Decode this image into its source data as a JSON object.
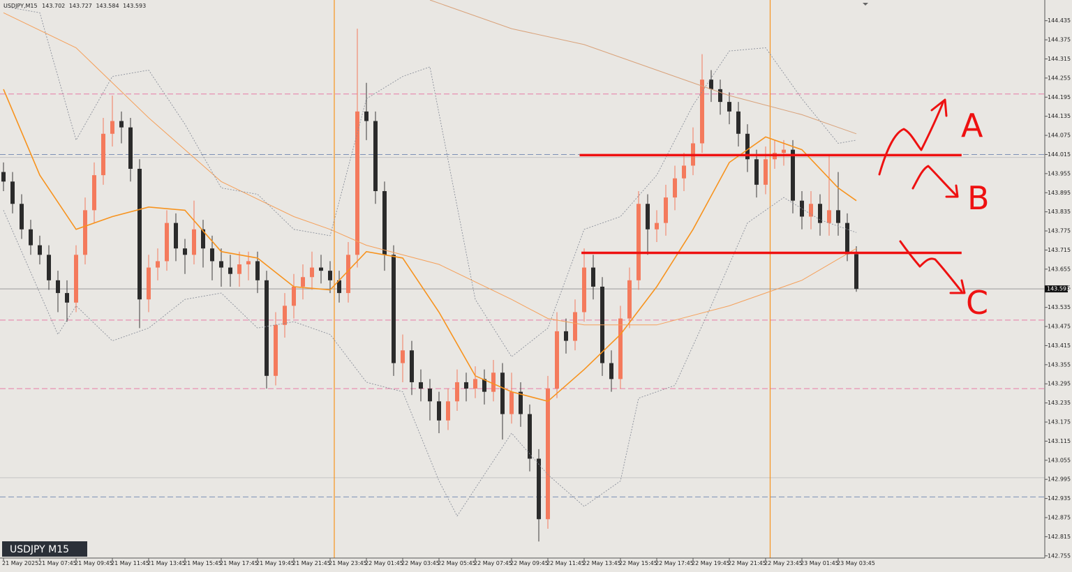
{
  "chart_data": {
    "type": "candlestick",
    "symbol": "USDJPY,M15",
    "watermark": "USDJPY M15",
    "colors": {
      "up": "#f47a5c",
      "down": "#2b2b2b",
      "wick": "#3a3a3a"
    },
    "ylim": [
      142.748,
      144.5
    ],
    "yticks": [
      144.435,
      144.375,
      144.315,
      144.255,
      144.195,
      144.135,
      144.075,
      144.015,
      143.955,
      143.895,
      143.835,
      143.775,
      143.715,
      143.655,
      143.595,
      143.535,
      143.475,
      143.415,
      143.355,
      143.295,
      143.235,
      143.175,
      143.115,
      143.055,
      142.995,
      142.935,
      142.875,
      142.815,
      142.755
    ],
    "xticks": [
      {
        "value": 0,
        "label": "21 May 2025"
      },
      {
        "value": 4,
        "label": "21 May 07:45"
      },
      {
        "value": 8,
        "label": "21 May 09:45"
      },
      {
        "value": 12,
        "label": "21 May 11:45"
      },
      {
        "value": 16,
        "label": "21 May 13:45"
      },
      {
        "value": 20,
        "label": "21 May 15:45"
      },
      {
        "value": 24,
        "label": "21 May 17:45"
      },
      {
        "value": 28,
        "label": "21 May 19:45"
      },
      {
        "value": 32,
        "label": "21 May 21:45"
      },
      {
        "value": 36,
        "label": "21 May 23:45"
      },
      {
        "value": 40,
        "label": "22 May 01:45"
      },
      {
        "value": 44,
        "label": "22 May 03:45"
      },
      {
        "value": 48,
        "label": "22 May 05:45"
      },
      {
        "value": 52,
        "label": "22 May 07:45"
      },
      {
        "value": 56,
        "label": "22 May 09:45"
      },
      {
        "value": 60,
        "label": "22 May 11:45"
      },
      {
        "value": 64,
        "label": "22 May 13:45"
      },
      {
        "value": 68,
        "label": "22 May 15:45"
      },
      {
        "value": 72,
        "label": "22 May 17:45"
      },
      {
        "value": 76,
        "label": "22 May 19:45"
      },
      {
        "value": 80,
        "label": "22 May 21:45"
      },
      {
        "value": 84,
        "label": "22 May 23:45"
      },
      {
        "value": 88,
        "label": "23 May 01:45"
      },
      {
        "value": 92,
        "label": "23 May 03:45"
      }
    ],
    "candles": [
      [
        143.96,
        143.99,
        143.9,
        143.93
      ],
      [
        143.93,
        143.96,
        143.83,
        143.86
      ],
      [
        143.86,
        143.89,
        143.75,
        143.78
      ],
      [
        143.78,
        143.81,
        143.7,
        143.73
      ],
      [
        143.73,
        143.76,
        143.67,
        143.7
      ],
      [
        143.7,
        143.73,
        143.59,
        143.62
      ],
      [
        143.62,
        143.65,
        143.52,
        143.58
      ],
      [
        143.58,
        143.62,
        143.49,
        143.55
      ],
      [
        143.55,
        143.73,
        143.52,
        143.7
      ],
      [
        143.7,
        143.88,
        143.67,
        143.84
      ],
      [
        143.84,
        143.99,
        143.8,
        143.95
      ],
      [
        143.95,
        144.13,
        143.92,
        144.08
      ],
      [
        144.08,
        144.2,
        144.04,
        144.12
      ],
      [
        144.12,
        144.15,
        144.05,
        144.1
      ],
      [
        144.1,
        144.13,
        143.93,
        143.97
      ],
      [
        143.97,
        144.0,
        143.47,
        143.56
      ],
      [
        143.56,
        143.7,
        143.52,
        143.66
      ],
      [
        143.66,
        143.72,
        143.62,
        143.68
      ],
      [
        143.68,
        143.84,
        143.65,
        143.8
      ],
      [
        143.8,
        143.83,
        143.68,
        143.72
      ],
      [
        143.72,
        143.75,
        143.64,
        143.7
      ],
      [
        143.7,
        143.87,
        143.67,
        143.78
      ],
      [
        143.78,
        143.81,
        143.66,
        143.72
      ],
      [
        143.72,
        143.76,
        143.62,
        143.68
      ],
      [
        143.68,
        143.72,
        143.6,
        143.66
      ],
      [
        143.66,
        143.7,
        143.6,
        143.64
      ],
      [
        143.64,
        143.71,
        143.6,
        143.67
      ],
      [
        143.67,
        143.71,
        143.62,
        143.68
      ],
      [
        143.68,
        143.71,
        143.58,
        143.62
      ],
      [
        143.62,
        143.65,
        143.28,
        143.32
      ],
      [
        143.32,
        143.52,
        143.29,
        143.48
      ],
      [
        143.48,
        143.58,
        143.44,
        143.54
      ],
      [
        143.54,
        143.64,
        143.5,
        143.6
      ],
      [
        143.6,
        143.67,
        143.56,
        143.63
      ],
      [
        143.63,
        143.71,
        143.59,
        143.66
      ],
      [
        143.66,
        143.7,
        143.61,
        143.65
      ],
      [
        143.65,
        143.68,
        143.58,
        143.62
      ],
      [
        143.62,
        143.65,
        143.55,
        143.58
      ],
      [
        143.58,
        143.74,
        143.55,
        143.7
      ],
      [
        143.7,
        144.41,
        143.66,
        144.15
      ],
      [
        144.15,
        144.24,
        144.06,
        144.12
      ],
      [
        144.12,
        144.15,
        143.86,
        143.9
      ],
      [
        143.9,
        143.93,
        143.65,
        143.7
      ],
      [
        143.7,
        143.73,
        143.32,
        143.36
      ],
      [
        143.36,
        143.45,
        143.3,
        143.4
      ],
      [
        143.4,
        143.43,
        143.26,
        143.3
      ],
      [
        143.3,
        143.34,
        143.24,
        143.28
      ],
      [
        143.28,
        143.31,
        143.18,
        143.24
      ],
      [
        143.24,
        143.27,
        143.14,
        143.18
      ],
      [
        143.18,
        143.28,
        143.15,
        143.24
      ],
      [
        143.24,
        143.34,
        143.21,
        143.3
      ],
      [
        143.3,
        143.33,
        143.24,
        143.28
      ],
      [
        143.28,
        143.35,
        143.25,
        143.31
      ],
      [
        143.31,
        143.34,
        143.23,
        143.27
      ],
      [
        143.27,
        143.37,
        143.24,
        143.33
      ],
      [
        143.33,
        143.36,
        143.12,
        143.2
      ],
      [
        143.2,
        143.33,
        143.17,
        143.27
      ],
      [
        143.27,
        143.3,
        143.16,
        143.2
      ],
      [
        143.2,
        143.23,
        143.02,
        143.06
      ],
      [
        143.06,
        143.09,
        142.8,
        142.87
      ],
      [
        142.87,
        143.32,
        142.84,
        143.28
      ],
      [
        143.28,
        143.52,
        143.25,
        143.46
      ],
      [
        143.46,
        143.5,
        143.39,
        143.43
      ],
      [
        143.43,
        143.56,
        143.4,
        143.52
      ],
      [
        143.52,
        143.72,
        143.49,
        143.66
      ],
      [
        143.66,
        143.7,
        143.56,
        143.6
      ],
      [
        143.6,
        143.63,
        143.32,
        143.36
      ],
      [
        143.36,
        143.4,
        143.27,
        143.31
      ],
      [
        143.31,
        143.54,
        143.28,
        143.5
      ],
      [
        143.5,
        143.66,
        143.47,
        143.62
      ],
      [
        143.62,
        143.9,
        143.59,
        143.86
      ],
      [
        143.86,
        143.89,
        143.7,
        143.78
      ],
      [
        143.78,
        143.84,
        143.74,
        143.8
      ],
      [
        143.8,
        143.92,
        143.76,
        143.88
      ],
      [
        143.88,
        143.98,
        143.84,
        143.94
      ],
      [
        143.94,
        144.02,
        143.9,
        143.98
      ],
      [
        143.98,
        144.1,
        143.95,
        144.05
      ],
      [
        144.05,
        144.33,
        144.02,
        144.25
      ],
      [
        144.25,
        144.28,
        144.18,
        144.22
      ],
      [
        144.22,
        144.25,
        144.14,
        144.18
      ],
      [
        144.18,
        144.21,
        144.11,
        144.15
      ],
      [
        144.15,
        144.18,
        144.04,
        144.08
      ],
      [
        144.08,
        144.11,
        143.96,
        144.0
      ],
      [
        144.0,
        144.03,
        143.88,
        143.92
      ],
      [
        143.92,
        144.04,
        143.89,
        144.0
      ],
      [
        144.0,
        144.06,
        143.97,
        144.02
      ],
      [
        144.02,
        144.06,
        143.98,
        144.03
      ],
      [
        144.03,
        144.06,
        143.83,
        143.87
      ],
      [
        143.87,
        143.9,
        143.78,
        143.82
      ],
      [
        143.82,
        143.9,
        143.78,
        143.86
      ],
      [
        143.86,
        143.89,
        143.76,
        143.8
      ],
      [
        143.8,
        144.01,
        143.76,
        143.84
      ],
      [
        143.84,
        143.96,
        143.76,
        143.8
      ],
      [
        143.8,
        143.83,
        143.68,
        143.702
      ],
      [
        143.702,
        143.727,
        143.584,
        143.593
      ]
    ],
    "lines": [
      {
        "color": "#f7931e",
        "width": 1.6,
        "dash": false,
        "x": [
          0,
          4,
          8,
          12,
          16,
          20,
          24,
          28,
          32,
          36,
          40,
          44,
          48,
          52,
          56,
          60,
          64,
          68,
          72,
          76,
          80,
          84,
          88,
          92,
          94
        ],
        "values": [
          144.22,
          143.95,
          143.78,
          143.82,
          143.85,
          143.84,
          143.71,
          143.69,
          143.6,
          143.59,
          143.71,
          143.69,
          143.52,
          143.32,
          143.27,
          143.24,
          143.34,
          143.45,
          143.6,
          143.78,
          143.99,
          144.07,
          144.03,
          143.91,
          143.87
        ]
      },
      {
        "color": "#f5a05a",
        "width": 1,
        "dash": false,
        "x": [
          0,
          8,
          16,
          24,
          32,
          36,
          40,
          48,
          56,
          60,
          64,
          72,
          80,
          88,
          94
        ],
        "values": [
          144.46,
          144.35,
          144.13,
          143.93,
          143.82,
          143.78,
          143.73,
          143.67,
          143.56,
          143.5,
          143.48,
          143.48,
          143.54,
          143.62,
          143.72
        ]
      },
      {
        "color": "#d9a27a",
        "width": 1,
        "dash": false,
        "x": [
          47,
          56,
          64,
          72,
          80,
          88,
          94
        ],
        "values": [
          144.5,
          144.41,
          144.36,
          144.28,
          144.2,
          144.14,
          144.08
        ]
      },
      {
        "color": "#8a8f9a",
        "width": 0.9,
        "dash": true,
        "x": [
          0,
          4,
          8,
          12,
          16,
          20,
          24,
          28,
          32,
          36,
          40,
          44,
          47,
          52,
          56,
          60,
          64,
          68,
          72,
          76,
          80,
          84,
          88,
          92,
          94
        ],
        "values": [
          144.48,
          144.46,
          144.06,
          144.26,
          144.28,
          144.11,
          143.91,
          143.89,
          143.78,
          143.76,
          144.19,
          144.26,
          144.29,
          143.56,
          143.38,
          143.47,
          143.78,
          143.82,
          143.95,
          144.17,
          144.34,
          144.35,
          144.19,
          144.05,
          144.06
        ]
      },
      {
        "color": "#8a8f9a",
        "width": 0.9,
        "dash": true,
        "x": [
          0,
          4,
          6,
          8,
          12,
          16,
          20,
          24,
          28,
          32,
          36,
          40,
          44,
          48,
          50,
          56,
          60,
          64,
          68,
          70,
          74,
          78,
          82,
          86,
          90,
          94
        ],
        "values": [
          143.84,
          143.58,
          143.45,
          143.54,
          143.43,
          143.47,
          143.56,
          143.58,
          143.47,
          143.49,
          143.45,
          143.3,
          143.27,
          142.99,
          142.88,
          143.14,
          143.01,
          142.91,
          142.99,
          143.25,
          143.29,
          143.54,
          143.8,
          143.88,
          143.81,
          143.77
        ]
      }
    ],
    "levels": [
      {
        "value": 144.205,
        "color": "#e87ca6",
        "dash": true
      },
      {
        "value": 143.495,
        "color": "#e87ca6",
        "dash": true
      },
      {
        "value": 143.28,
        "color": "#e87ca6",
        "dash": true
      },
      {
        "value": 144.015,
        "color": "#7b8fb5",
        "dash": true
      },
      {
        "value": 142.94,
        "color": "#7b8fb5",
        "dash": true
      },
      {
        "value": 144.006,
        "color": "#c4c4c4",
        "dash": false
      },
      {
        "value": 143,
        "color": "#c4c4c4",
        "dash": false
      },
      {
        "value": 143.593,
        "color": "#9a9a9a",
        "dash": false
      }
    ],
    "red_levels": [
      {
        "value": 144.013,
        "from": 63.5,
        "to": 105.6,
        "color": "#ee1111"
      },
      {
        "value": 143.706,
        "from": 63.7,
        "to": 105.6,
        "color": "#ee1111"
      }
    ],
    "vlines": {
      "x": [
        36.46,
        84.5
      ],
      "color": "#f7931e"
    },
    "annotations": [
      "A",
      "B",
      "C"
    ]
  }
}
